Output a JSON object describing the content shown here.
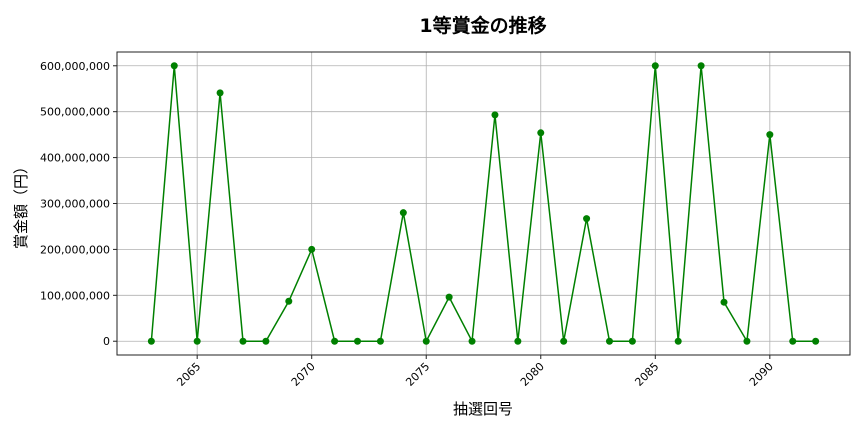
{
  "chart_data": {
    "type": "line",
    "title": "1等賞金の推移",
    "xlabel": "抽選回号",
    "ylabel": "賞金額（円）",
    "x": [
      2063,
      2064,
      2065,
      2066,
      2067,
      2068,
      2069,
      2070,
      2071,
      2072,
      2073,
      2074,
      2075,
      2076,
      2077,
      2078,
      2079,
      2080,
      2081,
      2082,
      2083,
      2084,
      2085,
      2086,
      2087,
      2088,
      2089,
      2090,
      2091,
      2092
    ],
    "series": [
      {
        "values": [
          0,
          600000000,
          0,
          541000000,
          0,
          0,
          87000000,
          200000000,
          0,
          0,
          0,
          280000000,
          0,
          96000000,
          0,
          493000000,
          0,
          454000000,
          0,
          267000000,
          0,
          0,
          600000000,
          0,
          600000000,
          85000000,
          0,
          450000000,
          0,
          0
        ],
        "color": "#008000",
        "marker": "circle"
      }
    ],
    "xticks": [
      "2065",
      "2070",
      "2075",
      "2080",
      "2085",
      "2090"
    ],
    "yticks": [
      "0",
      "100,000,000",
      "200,000,000",
      "300,000,000",
      "400,000,000",
      "500,000,000",
      "600,000,000"
    ],
    "xlim": [
      2061.5,
      2093.5
    ],
    "ylim": [
      -30000000,
      630000000
    ],
    "grid": true
  }
}
